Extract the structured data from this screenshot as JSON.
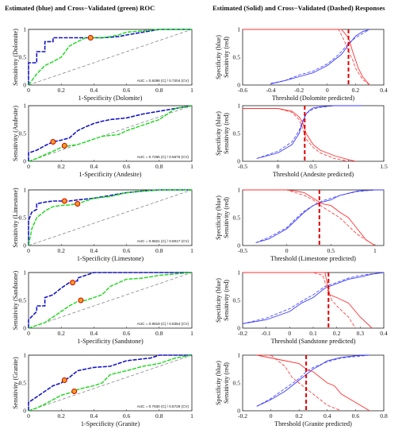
{
  "titles": {
    "left": "Estimated (blue) and  Cross−Validated (green) ROC",
    "right": "Estimated (Solid) and Cross−Validated (Dashed) Responses"
  },
  "colors": {
    "estimated_roc": "#1515c8",
    "crossval_roc": "#18d818",
    "specificity": "#3a3aff",
    "sensitivity": "#ff3030",
    "threshold_line": "#dd0000",
    "diagonal": "#777777"
  },
  "chart_data": [
    {
      "type": "line",
      "name": "roc-dolomite",
      "xlabel": "1-Specificity (Dolomite)",
      "ylabel": "Sensitivity (Dolomite)",
      "xlim": [
        0,
        1
      ],
      "ylim": [
        0,
        1
      ],
      "xticks": [
        "0",
        "0.2",
        "0.4",
        "0.6",
        "0.8",
        "1"
      ],
      "yticks": [
        "0",
        "0.5",
        "1"
      ],
      "auc_text": "AUC = 0.8298 (C) / 0.7204 (CV)",
      "estimated": {
        "x": [
          0,
          0,
          0.05,
          0.05,
          0.1,
          0.1,
          0.15,
          0.15,
          0.2,
          0.2,
          0.3,
          0.38,
          0.45,
          0.55,
          0.6,
          0.8,
          1
        ],
        "y": [
          0,
          0.4,
          0.4,
          0.6,
          0.6,
          0.78,
          0.78,
          0.85,
          0.85,
          0.85,
          0.85,
          0.85,
          0.85,
          0.87,
          0.9,
          1,
          1
        ]
      },
      "crossval": {
        "x": [
          0,
          0.05,
          0.1,
          0.15,
          0.2,
          0.25,
          0.3,
          0.35,
          0.45,
          0.5,
          0.55,
          0.6,
          0.8,
          1
        ],
        "y": [
          0,
          0.2,
          0.35,
          0.42,
          0.5,
          0.7,
          0.78,
          0.85,
          0.85,
          0.87,
          0.9,
          0.95,
          1,
          1
        ]
      },
      "marker": {
        "x": 0.38,
        "y": 0.85
      }
    },
    {
      "type": "line",
      "name": "roc-andesite",
      "xlabel": "1-Specificity (Andesite)",
      "ylabel": "Sensitivity (Andesite)",
      "xlim": [
        0,
        1
      ],
      "ylim": [
        0,
        1
      ],
      "xticks": [
        "0",
        "0.2",
        "0.4",
        "0.6",
        "0.8",
        "1"
      ],
      "yticks": [
        "0",
        "0.5",
        "1"
      ],
      "auc_text": "AUC = 0.7265 (C) / 0.5676 (CV)",
      "estimated": {
        "x": [
          0,
          0,
          0.05,
          0.1,
          0.15,
          0.2,
          0.25,
          0.3,
          0.35,
          0.4,
          0.45,
          0.5,
          0.6,
          0.7,
          0.8,
          0.9,
          1
        ],
        "y": [
          0,
          0.15,
          0.2,
          0.28,
          0.35,
          0.38,
          0.42,
          0.55,
          0.62,
          0.68,
          0.72,
          0.75,
          0.78,
          0.85,
          0.9,
          0.95,
          1
        ]
      },
      "crossval": {
        "x": [
          0,
          0.05,
          0.1,
          0.15,
          0.2,
          0.25,
          0.3,
          0.35,
          0.4,
          0.45,
          0.55,
          0.6,
          0.7,
          0.8,
          0.9,
          1
        ],
        "y": [
          0,
          0.05,
          0.12,
          0.18,
          0.25,
          0.28,
          0.3,
          0.35,
          0.4,
          0.45,
          0.48,
          0.55,
          0.65,
          0.75,
          0.95,
          1
        ]
      },
      "marker": {
        "x": 0.15,
        "y": 0.35
      },
      "marker2": {
        "x": 0.22,
        "y": 0.28
      }
    },
    {
      "type": "line",
      "name": "roc-limestone",
      "xlabel": "1-Specificity (Limestone)",
      "ylabel": "Sensitivity (Limestone)",
      "xlim": [
        0,
        1
      ],
      "ylim": [
        0,
        1
      ],
      "xticks": [
        "0",
        "0.2",
        "0.4",
        "0.6",
        "0.8",
        "1"
      ],
      "yticks": [
        "0",
        "0.5",
        "1"
      ],
      "auc_text": "AUC = 0.8821 (C) / 0.8017 (CV)",
      "estimated": {
        "x": [
          0,
          0,
          0.02,
          0.05,
          0.05,
          0.1,
          0.15,
          0.2,
          0.25,
          0.3,
          0.4,
          0.5,
          0.6,
          0.7,
          0.8,
          1
        ],
        "y": [
          0,
          0.45,
          0.6,
          0.65,
          0.75,
          0.78,
          0.8,
          0.8,
          0.8,
          0.82,
          0.85,
          0.9,
          0.95,
          0.98,
          1,
          1
        ]
      },
      "crossval": {
        "x": [
          0,
          0.02,
          0.05,
          0.1,
          0.15,
          0.2,
          0.25,
          0.3,
          0.35,
          0.4,
          0.5,
          0.6,
          0.7,
          0.8,
          1
        ],
        "y": [
          0,
          0.3,
          0.5,
          0.62,
          0.7,
          0.72,
          0.73,
          0.75,
          0.8,
          0.85,
          0.88,
          0.95,
          0.98,
          1,
          1
        ]
      },
      "marker": {
        "x": 0.22,
        "y": 0.8
      },
      "marker2": {
        "x": 0.3,
        "y": 0.75
      }
    },
    {
      "type": "line",
      "name": "roc-sandstone",
      "xlabel": "1-Specificity (Sandstone)",
      "ylabel": "Sensitivity (Sandstone)",
      "xlim": [
        0,
        1
      ],
      "ylim": [
        0,
        1
      ],
      "xticks": [
        "0",
        "0.2",
        "0.4",
        "0.6",
        "0.8",
        "1"
      ],
      "yticks": [
        "0",
        "0.5",
        "1"
      ],
      "auc_text": "AUC = 0.8819 (C) / 0.6354 (CV)",
      "estimated": {
        "x": [
          0,
          0,
          0.05,
          0.05,
          0.1,
          0.1,
          0.15,
          0.2,
          0.25,
          0.3,
          0.3,
          0.35,
          0.4,
          0.5,
          0.6,
          0.8,
          1
        ],
        "y": [
          0,
          0.15,
          0.3,
          0.4,
          0.4,
          0.55,
          0.6,
          0.72,
          0.82,
          0.85,
          0.9,
          0.95,
          1,
          1,
          1,
          1,
          1
        ]
      },
      "crossval": {
        "x": [
          0,
          0.05,
          0.1,
          0.15,
          0.2,
          0.25,
          0.3,
          0.35,
          0.4,
          0.45,
          0.5,
          0.6,
          0.7,
          0.8,
          1
        ],
        "y": [
          0,
          0.05,
          0.1,
          0.2,
          0.3,
          0.4,
          0.48,
          0.5,
          0.55,
          0.6,
          0.75,
          0.88,
          0.9,
          0.95,
          1
        ]
      },
      "marker": {
        "x": 0.27,
        "y": 0.82
      },
      "marker2": {
        "x": 0.32,
        "y": 0.5
      }
    },
    {
      "type": "line",
      "name": "roc-granite",
      "xlabel": "1-Specificity (Granite)",
      "ylabel": "Sensitivity (Granite)",
      "xlim": [
        0,
        1
      ],
      "ylim": [
        0,
        1
      ],
      "xticks": [
        "0",
        "0.2",
        "0.4",
        "0.6",
        "0.8",
        "1"
      ],
      "yticks": [
        "0",
        "0.5",
        "1"
      ],
      "auc_text": "AUC = 0.7630 (C) / 0.5728 (CV)",
      "estimated": {
        "x": [
          0,
          0,
          0.05,
          0.1,
          0.15,
          0.2,
          0.22,
          0.25,
          0.3,
          0.35,
          0.4,
          0.5,
          0.6,
          0.75,
          0.8,
          0.9,
          1
        ],
        "y": [
          0,
          0.15,
          0.25,
          0.35,
          0.45,
          0.5,
          0.55,
          0.6,
          0.72,
          0.75,
          0.78,
          0.8,
          0.9,
          0.95,
          1,
          1,
          1
        ]
      },
      "crossval": {
        "x": [
          0,
          0.05,
          0.1,
          0.15,
          0.2,
          0.25,
          0.3,
          0.35,
          0.4,
          0.45,
          0.5,
          0.6,
          0.7,
          0.8,
          0.9,
          1
        ],
        "y": [
          0,
          0.05,
          0.12,
          0.2,
          0.28,
          0.32,
          0.38,
          0.42,
          0.45,
          0.5,
          0.65,
          0.72,
          0.8,
          0.85,
          0.95,
          1
        ]
      },
      "marker": {
        "x": 0.22,
        "y": 0.55
      },
      "marker2": {
        "x": 0.28,
        "y": 0.35
      }
    },
    {
      "type": "line",
      "name": "resp-dolomite",
      "xlabel": "Threshold (Dolomite predicted)",
      "ylabel_top": "Specificity (blue)",
      "ylabel_bot": "Sensitivity (red)",
      "xlim": [
        -0.6,
        0.4
      ],
      "ylim": [
        0,
        1
      ],
      "xticks": [
        "-0.6",
        "-0.4",
        "-0.2",
        "0",
        "0.2",
        "0.4"
      ],
      "xtick_values": [
        -0.6,
        -0.4,
        -0.2,
        0,
        0.2,
        0.4
      ],
      "yticks": [
        "0",
        "0.5",
        "1"
      ],
      "threshold": 0.15,
      "spec_est": {
        "x": [
          -0.4,
          -0.3,
          -0.2,
          -0.1,
          0,
          0.05,
          0.1,
          0.15,
          0.2,
          0.25,
          0.3
        ],
        "y": [
          0.02,
          0.08,
          0.15,
          0.22,
          0.35,
          0.45,
          0.55,
          0.72,
          0.88,
          0.96,
          1
        ]
      },
      "spec_cv": {
        "x": [
          -0.4,
          -0.3,
          -0.2,
          -0.1,
          0,
          0.05,
          0.1,
          0.15,
          0.2,
          0.3
        ],
        "y": [
          0.03,
          0.08,
          0.18,
          0.25,
          0.38,
          0.48,
          0.6,
          0.75,
          0.85,
          1
        ]
      },
      "sens_est": {
        "x": [
          -0.6,
          0,
          0.1,
          0.15,
          0.18,
          0.2,
          0.22,
          0.25,
          0.3
        ],
        "y": [
          1,
          1,
          1,
          0.85,
          0.6,
          0.45,
          0.3,
          0.15,
          0
        ]
      },
      "sens_cv": {
        "x": [
          -0.6,
          0.08,
          0.1,
          0.12,
          0.15,
          0.18,
          0.2,
          0.25,
          0.3
        ],
        "y": [
          1,
          1,
          0.9,
          0.8,
          0.6,
          0.45,
          0.3,
          0.1,
          0
        ]
      }
    },
    {
      "type": "line",
      "name": "resp-andesite",
      "xlabel": "Threshold (Andesite predicted)",
      "ylabel_top": "Specificity (blue)",
      "ylabel_bot": "Sensitivity (red)",
      "xlim": [
        -0.5,
        1.5
      ],
      "ylim": [
        0,
        1
      ],
      "xticks": [
        "-0.5",
        "0",
        "0.5",
        "1",
        "1.5"
      ],
      "xtick_values": [
        -0.5,
        0,
        0.5,
        1,
        1.5
      ],
      "yticks": [
        "0",
        "0.5",
        "1"
      ],
      "threshold": 0.38,
      "spec_est": {
        "x": [
          -0.3,
          0,
          0.2,
          0.3,
          0.35,
          0.4,
          0.45,
          0.5,
          0.6,
          0.8,
          1,
          1.2
        ],
        "y": [
          0.05,
          0.15,
          0.3,
          0.5,
          0.7,
          0.85,
          0.92,
          0.96,
          0.98,
          1,
          1,
          1
        ]
      },
      "spec_cv": {
        "x": [
          -0.3,
          0,
          0.2,
          0.3,
          0.35,
          0.4,
          0.5,
          0.6,
          0.8,
          1.2
        ],
        "y": [
          0.05,
          0.18,
          0.35,
          0.55,
          0.72,
          0.86,
          0.94,
          0.97,
          1,
          1
        ]
      },
      "sens_est": {
        "x": [
          -0.5,
          0,
          0.2,
          0.3,
          0.35,
          0.4,
          0.5,
          0.6,
          0.8,
          1,
          1.1
        ],
        "y": [
          0.95,
          0.95,
          0.9,
          0.8,
          0.7,
          0.5,
          0.3,
          0.2,
          0.1,
          0.03,
          0
        ]
      },
      "sens_cv": {
        "x": [
          -0.5,
          0,
          0.2,
          0.3,
          0.35,
          0.4,
          0.5,
          0.6,
          0.8,
          1
        ],
        "y": [
          0.95,
          0.95,
          0.88,
          0.75,
          0.6,
          0.4,
          0.25,
          0.15,
          0.05,
          0
        ]
      }
    },
    {
      "type": "line",
      "name": "resp-limestone",
      "xlabel": "Threshold (Limestone predicted)",
      "ylabel_top": "Specificity (blue)",
      "ylabel_bot": "Sensitivity (red)",
      "xlim": [
        -0.5,
        1.1
      ],
      "ylim": [
        0,
        1
      ],
      "xticks": [
        "-0.5",
        "0",
        "0.5",
        "1"
      ],
      "xtick_values": [
        -0.5,
        0,
        0.5,
        1
      ],
      "yticks": [
        "0",
        "0.5",
        "1"
      ],
      "threshold": 0.37,
      "spec_est": {
        "x": [
          -0.35,
          -0.2,
          0,
          0.1,
          0.2,
          0.3,
          0.4,
          0.5,
          0.6,
          0.8,
          1,
          1.1
        ],
        "y": [
          0.05,
          0.12,
          0.3,
          0.45,
          0.6,
          0.72,
          0.78,
          0.82,
          0.9,
          0.98,
          1,
          1
        ]
      },
      "spec_cv": {
        "x": [
          -0.35,
          -0.2,
          0,
          0.1,
          0.2,
          0.3,
          0.4,
          0.5,
          0.6,
          0.8,
          1
        ],
        "y": [
          0.05,
          0.15,
          0.32,
          0.48,
          0.62,
          0.72,
          0.8,
          0.85,
          0.9,
          0.97,
          1
        ]
      },
      "sens_est": {
        "x": [
          -0.5,
          0,
          0.1,
          0.2,
          0.3,
          0.35,
          0.4,
          0.5,
          0.6,
          0.7,
          0.8,
          0.9,
          1
        ],
        "y": [
          1,
          1,
          0.98,
          0.95,
          0.85,
          0.8,
          0.75,
          0.72,
          0.6,
          0.5,
          0.3,
          0.1,
          0
        ]
      },
      "sens_cv": {
        "x": [
          -0.5,
          0,
          0.1,
          0.2,
          0.3,
          0.35,
          0.4,
          0.5,
          0.6,
          0.7,
          0.8,
          1
        ],
        "y": [
          1,
          1,
          0.95,
          0.9,
          0.82,
          0.75,
          0.7,
          0.6,
          0.5,
          0.35,
          0.2,
          0
        ]
      }
    },
    {
      "type": "line",
      "name": "resp-sandstone",
      "xlabel": "Threshold (Sandstone predicted)",
      "ylabel_top": "Specificity (blue)",
      "ylabel_bot": "Sensitivity (red)",
      "xlim": [
        -0.2,
        0.4
      ],
      "ylim": [
        0,
        1
      ],
      "xticks": [
        "-0.2",
        "-0.1",
        "0",
        "0.1",
        "0.2",
        "0.3",
        "0.4"
      ],
      "xtick_values": [
        -0.2,
        -0.1,
        0,
        0.1,
        0.2,
        0.3,
        0.4
      ],
      "yticks": [
        "0",
        "0.5",
        "1"
      ],
      "threshold": 0.165,
      "spec_est": {
        "x": [
          -0.2,
          -0.1,
          0,
          0.05,
          0.1,
          0.15,
          0.2,
          0.25,
          0.3,
          0.35,
          0.4
        ],
        "y": [
          0.08,
          0.15,
          0.3,
          0.45,
          0.55,
          0.72,
          0.8,
          0.88,
          0.92,
          0.97,
          1
        ]
      },
      "spec_cv": {
        "x": [
          -0.2,
          -0.1,
          0,
          0.05,
          0.1,
          0.15,
          0.2,
          0.25,
          0.3,
          0.4
        ],
        "y": [
          0.08,
          0.18,
          0.35,
          0.48,
          0.6,
          0.75,
          0.82,
          0.9,
          0.95,
          1
        ]
      },
      "sens_est": {
        "x": [
          -0.2,
          0.1,
          0.15,
          0.16,
          0.17,
          0.2,
          0.25,
          0.3,
          0.35
        ],
        "y": [
          1,
          1,
          1,
          0.8,
          0.6,
          0.55,
          0.45,
          0.2,
          0
        ]
      },
      "sens_cv": {
        "x": [
          -0.2,
          0.1,
          0.14,
          0.16,
          0.18,
          0.2,
          0.25,
          0.28
        ],
        "y": [
          1,
          1,
          0.95,
          0.7,
          0.5,
          0.4,
          0.2,
          0
        ]
      }
    },
    {
      "type": "line",
      "name": "resp-granite",
      "xlabel": "Threshold (Granite predicted)",
      "ylabel_top": "Specificity (blue)",
      "ylabel_bot": "Sensitivity (red)",
      "xlim": [
        -0.2,
        0.8
      ],
      "ylim": [
        0,
        1
      ],
      "xticks": [
        "-0.2",
        "0",
        "0.2",
        "0.4",
        "0.6",
        "0.8"
      ],
      "xtick_values": [
        -0.2,
        0,
        0.2,
        0.4,
        0.6,
        0.8
      ],
      "yticks": [
        "0",
        "0.5",
        "1"
      ],
      "threshold": 0.25,
      "spec_est": {
        "x": [
          -0.1,
          0,
          0.1,
          0.2,
          0.25,
          0.3,
          0.35,
          0.4,
          0.5,
          0.6,
          0.7
        ],
        "y": [
          0.08,
          0.2,
          0.35,
          0.55,
          0.65,
          0.75,
          0.82,
          0.9,
          0.96,
          0.99,
          1
        ]
      },
      "spec_cv": {
        "x": [
          -0.1,
          0,
          0.1,
          0.2,
          0.25,
          0.3,
          0.4,
          0.5,
          0.7
        ],
        "y": [
          0.08,
          0.22,
          0.4,
          0.58,
          0.7,
          0.78,
          0.88,
          0.95,
          1
        ]
      },
      "sens_est": {
        "x": [
          -0.1,
          0,
          0.1,
          0.2,
          0.25,
          0.3,
          0.4,
          0.45,
          0.5,
          0.6,
          0.7
        ],
        "y": [
          1,
          0.95,
          0.9,
          0.85,
          0.75,
          0.7,
          0.5,
          0.45,
          0.3,
          0.15,
          0
        ]
      },
      "sens_cv": {
        "x": [
          -0.1,
          0,
          0.05,
          0.1,
          0.15,
          0.2,
          0.25,
          0.3,
          0.35,
          0.4,
          0.5
        ],
        "y": [
          1,
          1,
          0.9,
          0.8,
          0.6,
          0.5,
          0.4,
          0.3,
          0.2,
          0.1,
          0
        ]
      }
    }
  ]
}
